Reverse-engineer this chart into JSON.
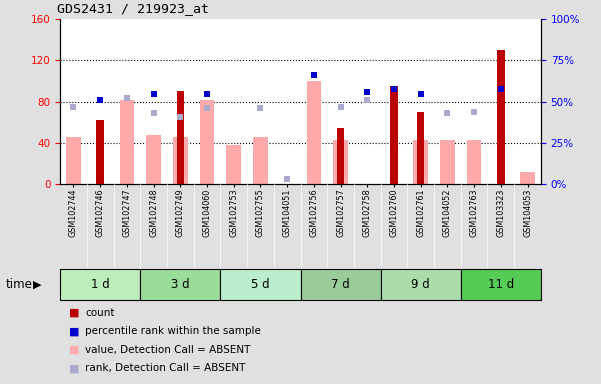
{
  "title": "GDS2431 / 219923_at",
  "samples": [
    "GSM102744",
    "GSM102746",
    "GSM102747",
    "GSM102748",
    "GSM102749",
    "GSM104060",
    "GSM102753",
    "GSM102755",
    "GSM104051",
    "GSM102756",
    "GSM102757",
    "GSM102758",
    "GSM102760",
    "GSM102761",
    "GSM104052",
    "GSM102763",
    "GSM103323",
    "GSM104053"
  ],
  "time_groups": [
    {
      "label": "1 d",
      "start": 0,
      "end": 3,
      "color": "#bbeebb"
    },
    {
      "label": "3 d",
      "start": 3,
      "end": 6,
      "color": "#99dd99"
    },
    {
      "label": "5 d",
      "start": 6,
      "end": 9,
      "color": "#bbeecc"
    },
    {
      "label": "7 d",
      "start": 9,
      "end": 12,
      "color": "#99cc99"
    },
    {
      "label": "9 d",
      "start": 12,
      "end": 15,
      "color": "#aaddaa"
    },
    {
      "label": "11 d",
      "start": 15,
      "end": 18,
      "color": "#55cc55"
    }
  ],
  "count_values": [
    null,
    62,
    null,
    null,
    90,
    null,
    null,
    null,
    null,
    null,
    55,
    null,
    95,
    70,
    null,
    null,
    130,
    null
  ],
  "percentile_values": [
    null,
    51,
    null,
    55,
    null,
    55,
    null,
    null,
    null,
    66,
    null,
    56,
    58,
    55,
    null,
    null,
    58,
    null
  ],
  "value_absent": [
    46,
    null,
    82,
    48,
    46,
    82,
    38,
    46,
    null,
    100,
    43,
    null,
    null,
    43,
    43,
    43,
    null,
    12
  ],
  "rank_absent": [
    47,
    null,
    52,
    43,
    41,
    46,
    null,
    46,
    3,
    null,
    47,
    51,
    null,
    null,
    43,
    44,
    null,
    null
  ],
  "left_ylim": [
    0,
    160
  ],
  "left_yticks": [
    0,
    40,
    80,
    120,
    160
  ],
  "right_ylim": [
    0,
    100
  ],
  "right_yticks": [
    0,
    25,
    50,
    75,
    100
  ],
  "right_yticklabels": [
    "0%",
    "25%",
    "50%",
    "75%",
    "100%"
  ],
  "count_color": "#bb0000",
  "percentile_color": "#0000cc",
  "value_absent_color": "#ffaaaa",
  "rank_absent_color": "#aaaacc",
  "plot_bg": "#ffffff",
  "fig_bg": "#e0e0e0",
  "sample_bg": "#cccccc"
}
